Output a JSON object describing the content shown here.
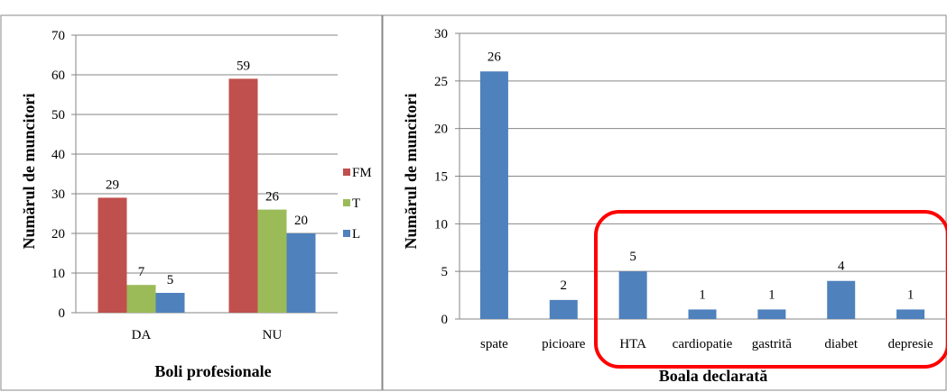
{
  "chart_data": [
    {
      "type": "bar",
      "categories": [
        "DA",
        "NU"
      ],
      "series": [
        {
          "name": "FM",
          "values": [
            29,
            59
          ],
          "color": "#c0504d"
        },
        {
          "name": "T",
          "values": [
            7,
            26
          ],
          "color": "#9bbb59"
        },
        {
          "name": "L",
          "values": [
            5,
            20
          ],
          "color": "#4f81bd"
        }
      ],
      "xlabel": "Boli profesionale",
      "ylabel": "Numărul de muncitori",
      "ylim": [
        0,
        70
      ],
      "yticks": [
        0,
        10,
        20,
        30,
        40,
        50,
        60,
        70
      ],
      "grid": true,
      "legend": "right",
      "data_labels": true
    },
    {
      "type": "bar",
      "categories": [
        "spate",
        "picioare",
        "HTA",
        "cardiopatie",
        "gastrită",
        "diabet",
        "depresie"
      ],
      "series": [
        {
          "values": [
            26,
            2,
            5,
            1,
            1,
            4,
            1
          ],
          "color": "#4f81bd"
        }
      ],
      "xlabel": "Boala declarată",
      "ylabel": "Numărul de muncitori",
      "ylim": [
        0,
        30
      ],
      "yticks": [
        0,
        5,
        10,
        15,
        20,
        25,
        30
      ],
      "grid": true,
      "data_labels": true,
      "highlight": {
        "categories": [
          "HTA",
          "cardiopatie",
          "gastrită",
          "diabet",
          "depresie"
        ],
        "color": "#ff0000"
      }
    }
  ]
}
